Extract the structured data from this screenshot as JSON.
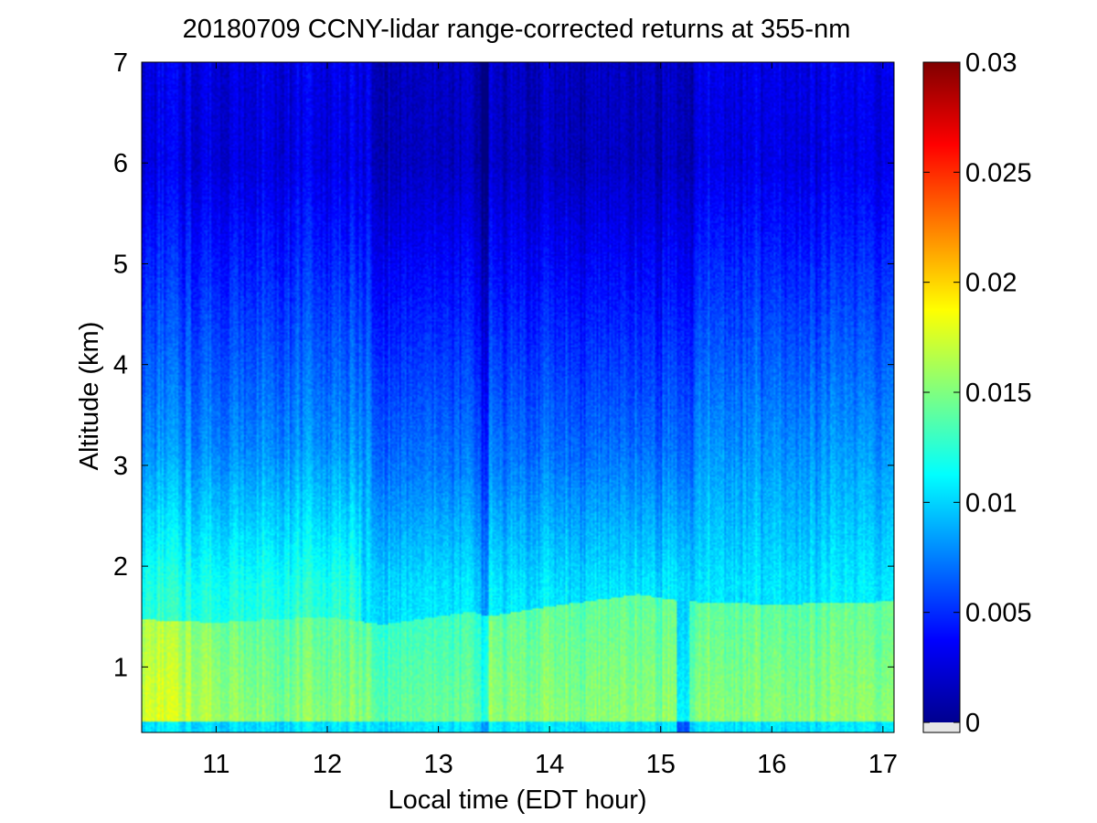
{
  "chart_data": {
    "type": "heatmap",
    "title": "20180709 CCNY-lidar range-corrected returns at 355-nm",
    "xlabel": "Local time (EDT hour)",
    "ylabel": "Altitude (km)",
    "xlim": [
      10.33,
      17.1
    ],
    "ylim": [
      0.35,
      7.0
    ],
    "xticks": [
      11,
      12,
      13,
      14,
      15,
      16,
      17
    ],
    "yticks": [
      1,
      2,
      3,
      4,
      5,
      6,
      7
    ],
    "colormap": "jet",
    "colorbar": {
      "range": [
        0,
        0.03
      ],
      "ticks": [
        0,
        0.005,
        0.01,
        0.015,
        0.02,
        0.025,
        0.03
      ],
      "tick_labels": [
        "0",
        "0.005",
        "0.01",
        "0.015",
        "0.02",
        "0.025",
        "0.03"
      ],
      "below_range_color": "#e6e6e6"
    },
    "field": {
      "description_of_bands": "aerosol boundary layer top",
      "boundary_layer_top_km": [
        {
          "t": 10.33,
          "z": 1.47
        },
        {
          "t": 11.0,
          "z": 1.44
        },
        {
          "t": 12.0,
          "z": 1.5
        },
        {
          "t": 12.5,
          "z": 1.42
        },
        {
          "t": 13.3,
          "z": 1.55
        },
        {
          "t": 13.45,
          "z": 1.5
        },
        {
          "t": 14.0,
          "z": 1.6
        },
        {
          "t": 14.8,
          "z": 1.72
        },
        {
          "t": 15.2,
          "z": 1.65
        },
        {
          "t": 16.0,
          "z": 1.62
        },
        {
          "t": 17.1,
          "z": 1.65
        }
      ],
      "signal_drop_times": [
        13.42,
        15.2
      ],
      "value_near_surface_max": 0.019,
      "value_upper_min": 0.003
    },
    "grid": false,
    "legend": "colorbar-right"
  }
}
